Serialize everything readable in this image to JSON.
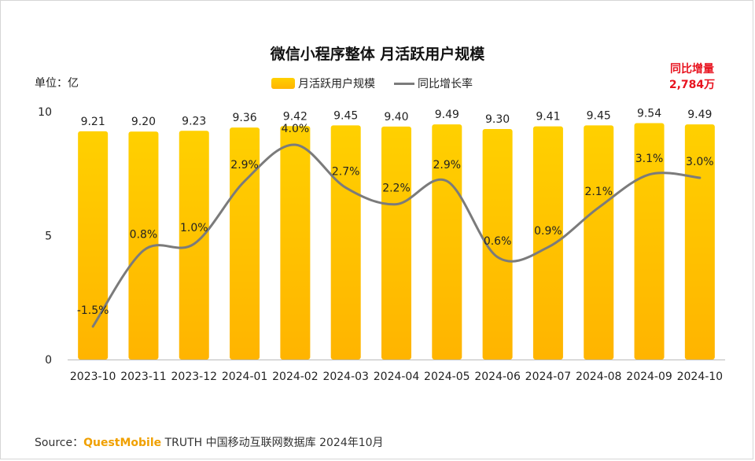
{
  "title": "微信小程序整体 月活跃用户规模",
  "unit_label": "单位：亿",
  "legend": {
    "bar": "月活跃用户规模",
    "line": "同比增长率"
  },
  "yoy_note": {
    "line1": "同比增量",
    "line2": "2,784万"
  },
  "source": {
    "prefix": "Source：",
    "brand": "QuestMobile",
    "rest": " TRUTH 中国移动互联网数据库 2024年10月"
  },
  "colors": {
    "bar_top": "#ffd000",
    "bar_bottom": "#ffb400",
    "line": "#7b7b7b",
    "accent": "#e8131f"
  },
  "chart_data": {
    "type": "bar",
    "categories": [
      "2023-10",
      "2023-11",
      "2023-12",
      "2024-01",
      "2024-02",
      "2024-03",
      "2024-04",
      "2024-05",
      "2024-06",
      "2024-07",
      "2024-08",
      "2024-09",
      "2024-10"
    ],
    "series": [
      {
        "name": "月活跃用户规模",
        "type": "bar",
        "values": [
          9.21,
          9.2,
          9.23,
          9.36,
          9.42,
          9.45,
          9.4,
          9.49,
          9.3,
          9.41,
          9.45,
          9.54,
          9.49
        ],
        "labels": [
          "9.21",
          "9.20",
          "9.23",
          "9.36",
          "9.42",
          "9.45",
          "9.40",
          "9.49",
          "9.30",
          "9.41",
          "9.45",
          "9.54",
          "9.49"
        ]
      },
      {
        "name": "同比增长率",
        "type": "line",
        "values": [
          -1.5,
          0.8,
          1.0,
          2.9,
          4.0,
          2.7,
          2.2,
          2.9,
          0.6,
          0.9,
          2.1,
          3.1,
          3.0
        ],
        "labels": [
          "-1.5%",
          "0.8%",
          "1.0%",
          "2.9%",
          "4.0%",
          "2.7%",
          "2.2%",
          "2.9%",
          "0.6%",
          "0.9%",
          "2.1%",
          "3.1%",
          "3.0%"
        ]
      }
    ],
    "ylabel": "单位：亿",
    "ylim": [
      0,
      10
    ],
    "yticks": [
      "0",
      "5",
      "10"
    ],
    "grid": false,
    "legend_position": "top-center"
  }
}
